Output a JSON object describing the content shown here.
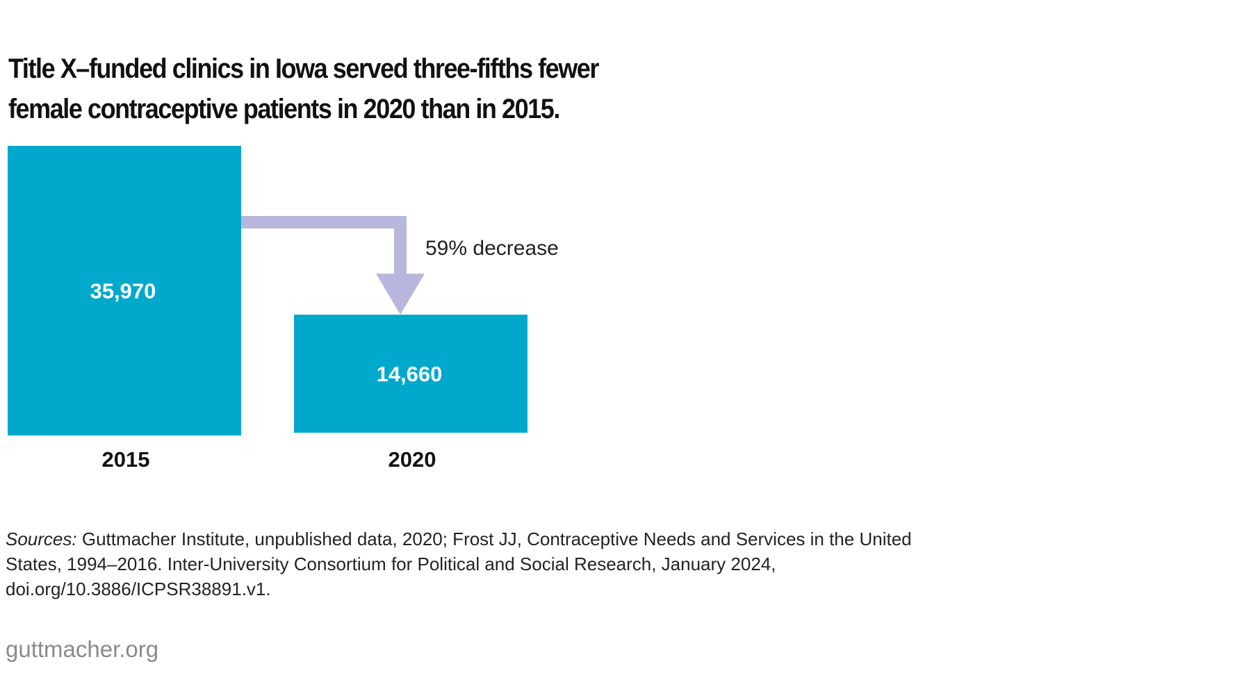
{
  "title": "Title X–funded clinics in Iowa served three-fifths fewer female contraceptive patients in 2020 than in 2015.",
  "chart_data": {
    "type": "bar",
    "title": "Title X–funded clinics in Iowa served three-fifths fewer female contraceptive patients in 2020 than in 2015.",
    "categories": [
      "2015",
      "2020"
    ],
    "values": [
      35970,
      14660
    ],
    "value_labels": [
      "35,970",
      "14,660"
    ],
    "annotation": "59% decrease",
    "xlabel": "",
    "ylabel": "",
    "grid": false,
    "legend": "none"
  },
  "colors": {
    "bar": "#00a9cc",
    "arrow": "#b7b7dd",
    "bar_label": "#ffffff",
    "axis_label": "#111111"
  },
  "sources": {
    "label": "Sources:",
    "text": "Guttmacher Institute, unpublished data, 2020; Frost JJ, Contraceptive Needs and Services in the United States, 1994–2016. Inter-University Consortium for Political and Social Research, January 2024, doi.org/10.3886/ICPSR38891.v1."
  },
  "brand": "guttmacher.org"
}
